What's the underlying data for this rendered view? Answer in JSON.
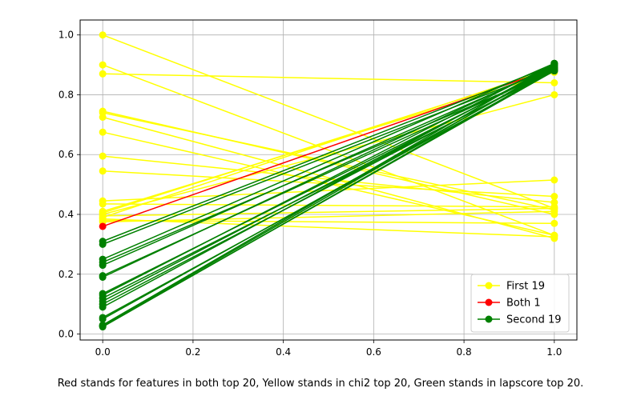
{
  "chart_data": {
    "type": "line",
    "title": "",
    "xlabel": "",
    "ylabel": "",
    "xlim": [
      -0.05,
      1.05
    ],
    "ylim": [
      -0.02,
      1.05
    ],
    "xticks": [
      0,
      0.2,
      0.4,
      0.6,
      0.8,
      1.0
    ],
    "xtick_labels": [
      "0.0",
      "0.2",
      "0.4",
      "0.6",
      "0.8",
      "1.0"
    ],
    "yticks": [
      0,
      0.2,
      0.4,
      0.6,
      0.8,
      1.0
    ],
    "ytick_labels": [
      "0.0",
      "0.2",
      "0.4",
      "0.6",
      "0.8",
      "1.0"
    ],
    "grid": true,
    "legend_position": "lower-right",
    "series": [
      {
        "name": "First 19",
        "color": "#ffff00",
        "segments": [
          [
            1.0,
            0.42
          ],
          [
            0.9,
            0.33
          ],
          [
            0.87,
            0.84
          ],
          [
            0.745,
            0.4
          ],
          [
            0.74,
            0.415
          ],
          [
            0.725,
            0.32
          ],
          [
            0.675,
            0.33
          ],
          [
            0.595,
            0.44
          ],
          [
            0.545,
            0.46
          ],
          [
            0.445,
            0.515
          ],
          [
            0.435,
            0.425
          ],
          [
            0.41,
            0.875
          ],
          [
            0.405,
            0.885
          ],
          [
            0.4,
            0.8
          ],
          [
            0.395,
            0.42
          ],
          [
            0.39,
            0.89
          ],
          [
            0.385,
            0.325
          ],
          [
            0.38,
            0.37
          ],
          [
            0.375,
            0.41
          ]
        ]
      },
      {
        "name": "Both 1",
        "color": "#ff0000",
        "segments": [
          [
            0.36,
            0.89
          ]
        ]
      },
      {
        "name": "Second 19",
        "color": "#008000",
        "segments": [
          [
            0.31,
            0.9
          ],
          [
            0.3,
            0.89
          ],
          [
            0.25,
            0.905
          ],
          [
            0.24,
            0.88
          ],
          [
            0.23,
            0.895
          ],
          [
            0.195,
            0.885
          ],
          [
            0.19,
            0.9
          ],
          [
            0.135,
            0.89
          ],
          [
            0.13,
            0.905
          ],
          [
            0.12,
            0.88
          ],
          [
            0.11,
            0.895
          ],
          [
            0.1,
            0.885
          ],
          [
            0.09,
            0.9
          ],
          [
            0.055,
            0.88
          ],
          [
            0.05,
            0.89
          ],
          [
            0.03,
            0.905
          ],
          [
            0.028,
            0.895
          ],
          [
            0.026,
            0.88
          ],
          [
            0.024,
            0.885
          ]
        ]
      }
    ],
    "caption": "Red stands for features in both top 20, Yellow stands in chi2 top 20, Green stands in lapscore top 20."
  }
}
